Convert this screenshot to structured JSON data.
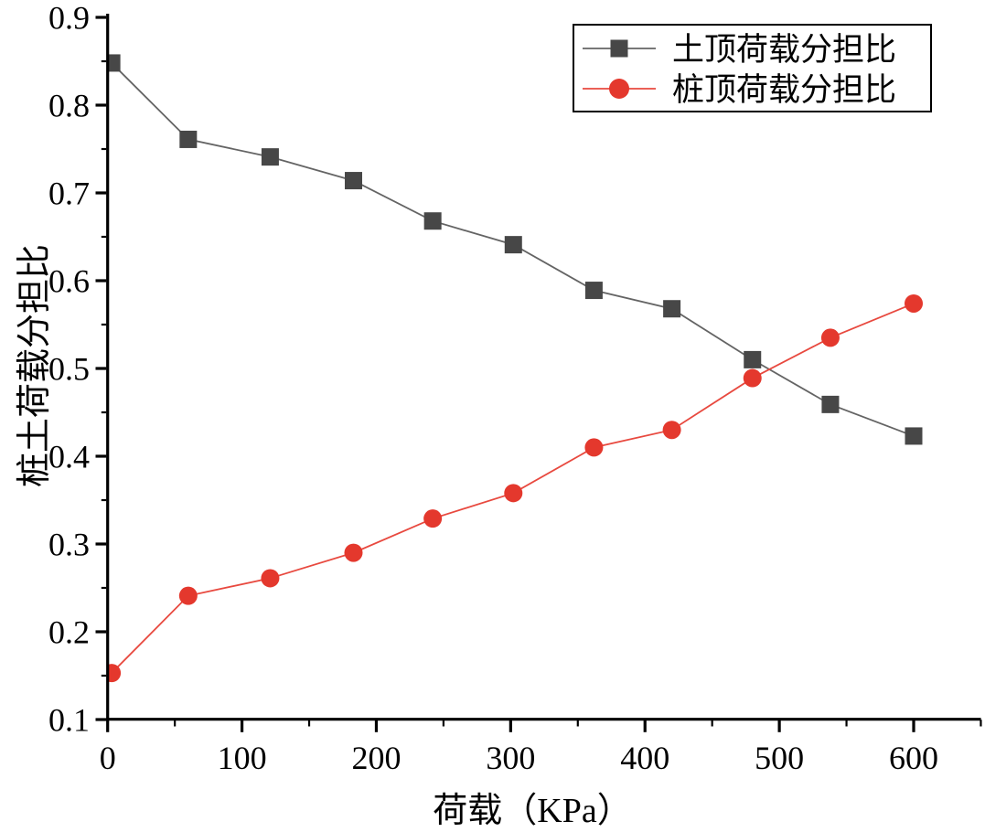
{
  "chart_data": {
    "type": "line",
    "title": "",
    "xlabel": "荷载（KPa）",
    "ylabel": "桩土荷载分担比",
    "xlim": [
      0,
      650
    ],
    "ylim": [
      0.1,
      0.9
    ],
    "grid": false,
    "legend_position": "top-right",
    "x_major_ticks": [
      0,
      100,
      200,
      300,
      400,
      500,
      600
    ],
    "x_minor_ticks": [
      50,
      150,
      250,
      350,
      450,
      550,
      650
    ],
    "x_tick_labels": [
      "0",
      "100",
      "200",
      "300",
      "400",
      "500",
      "600"
    ],
    "y_major_ticks": [
      0.1,
      0.2,
      0.3,
      0.4,
      0.5,
      0.6,
      0.7,
      0.8,
      0.9
    ],
    "y_minor_ticks": [
      0.15,
      0.25,
      0.35,
      0.45,
      0.55,
      0.65,
      0.75,
      0.85
    ],
    "y_tick_labels": [
      "0.1",
      "0.2",
      "0.3",
      "0.4",
      "0.5",
      "0.6",
      "0.7",
      "0.8",
      "0.9"
    ],
    "x": [
      3,
      60,
      121,
      183,
      242,
      302,
      362,
      420,
      480,
      538,
      600
    ],
    "series": [
      {
        "name": "土顶荷载分担比",
        "marker": "square",
        "marker_color": "#474747",
        "line_color": "#646464",
        "values": [
          0.848,
          0.761,
          0.741,
          0.714,
          0.668,
          0.641,
          0.589,
          0.568,
          0.51,
          0.459,
          0.423
        ]
      },
      {
        "name": "桩顶荷载分担比",
        "marker": "circle",
        "marker_color": "#e4382d",
        "line_color": "#e8493f",
        "values": [
          0.153,
          0.241,
          0.261,
          0.29,
          0.329,
          0.358,
          0.41,
          0.43,
          0.489,
          0.535,
          0.574
        ]
      }
    ],
    "axis_color": "#000000",
    "legend_border_color": "#000000",
    "legend_background": "#ffffff"
  }
}
